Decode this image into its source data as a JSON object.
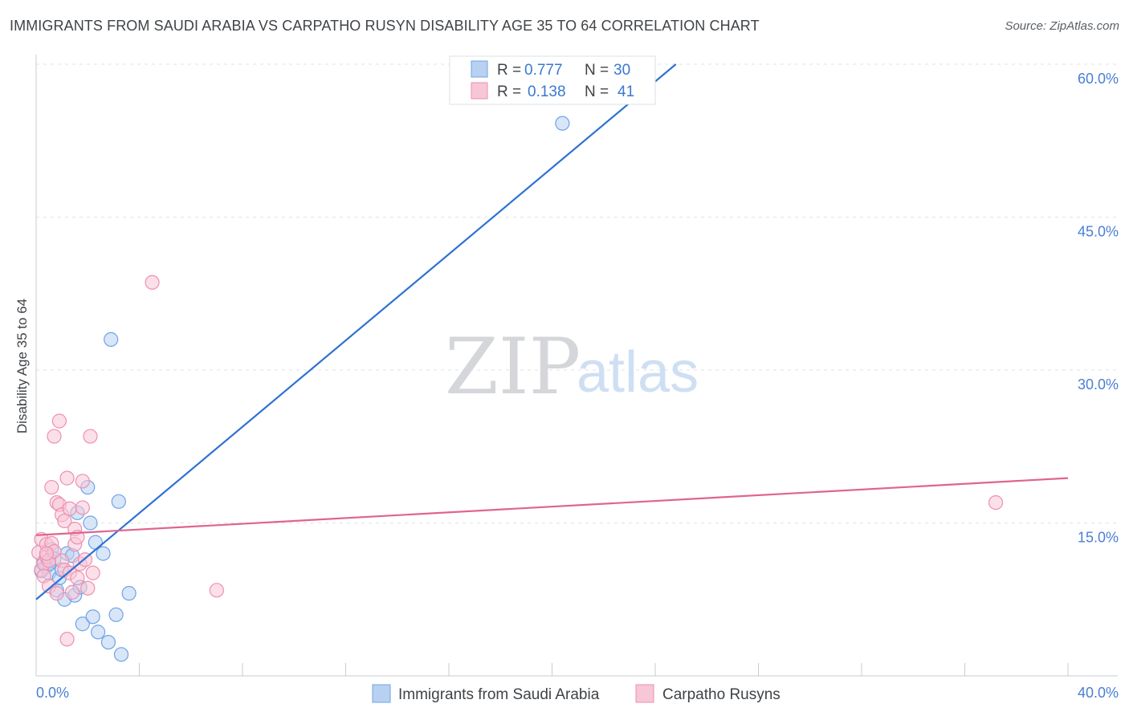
{
  "chart_data": {
    "type": "scatter",
    "title": "IMMIGRANTS FROM SAUDI ARABIA VS CARPATHO RUSYN DISABILITY AGE 35 TO 64 CORRELATION CHART",
    "source": "Source: ZipAtlas.com",
    "ylabel": "Disability Age 35 to 64",
    "xlabel": "",
    "xlim": [
      0,
      40
    ],
    "ylim": [
      0,
      60
    ],
    "x_tick_labels": [
      {
        "value": 0,
        "label": "0.0%"
      },
      {
        "value": 40,
        "label": "40.0%"
      }
    ],
    "y_tick_labels": [
      {
        "value": 15,
        "label": "15.0%"
      },
      {
        "value": 30,
        "label": "30.0%"
      },
      {
        "value": 45,
        "label": "45.0%"
      },
      {
        "value": 60,
        "label": "60.0%"
      }
    ],
    "watermark": {
      "zip": "ZIP",
      "atlas": "atlas"
    },
    "legend_stats": [
      {
        "r_label": "R = ",
        "r": "0.777",
        "n_label": "N = ",
        "n": "30"
      },
      {
        "r_label": "R = ",
        "r": "0.138",
        "n_label": "N = ",
        "n": "41"
      }
    ],
    "series": [
      {
        "name": "Immigrants from Saudi Arabia",
        "color": "#6fa3e6",
        "fill": "#b8d1f2",
        "line_color": "#2e72d2",
        "trend": {
          "x0": 0,
          "y0": 7.5,
          "x1": 24.8,
          "y1": 60.0
        },
        "points": [
          [
            0.2,
            10.3
          ],
          [
            0.3,
            11.2
          ],
          [
            0.4,
            10.7
          ],
          [
            0.5,
            10.1
          ],
          [
            0.6,
            12.4
          ],
          [
            0.7,
            11.5
          ],
          [
            0.8,
            8.4
          ],
          [
            0.9,
            9.6
          ],
          [
            1.0,
            10.4
          ],
          [
            1.1,
            7.5
          ],
          [
            1.2,
            12.0
          ],
          [
            1.4,
            11.8
          ],
          [
            1.5,
            7.9
          ],
          [
            1.6,
            16.0
          ],
          [
            1.7,
            8.7
          ],
          [
            1.8,
            5.1
          ],
          [
            2.0,
            18.5
          ],
          [
            2.1,
            15.0
          ],
          [
            2.2,
            5.8
          ],
          [
            2.3,
            13.1
          ],
          [
            2.4,
            4.3
          ],
          [
            2.6,
            12.0
          ],
          [
            2.8,
            3.3
          ],
          [
            2.9,
            33.0
          ],
          [
            3.1,
            6.0
          ],
          [
            3.2,
            17.1
          ],
          [
            3.3,
            2.1
          ],
          [
            3.6,
            8.1
          ],
          [
            20.4,
            54.2
          ],
          [
            0.5,
            11.0
          ]
        ]
      },
      {
        "name": "Carpatho Rusyns",
        "color": "#ee8fb0",
        "fill": "#f7c6d7",
        "line_color": "#e0648e",
        "trend": {
          "x0": 0,
          "y0": 13.8,
          "x1": 40,
          "y1": 19.4
        },
        "points": [
          [
            0.1,
            12.1
          ],
          [
            0.2,
            13.4
          ],
          [
            0.2,
            10.4
          ],
          [
            0.3,
            11.0
          ],
          [
            0.3,
            9.8
          ],
          [
            0.4,
            11.7
          ],
          [
            0.4,
            12.9
          ],
          [
            0.5,
            8.8
          ],
          [
            0.5,
            11.3
          ],
          [
            0.6,
            13.0
          ],
          [
            0.6,
            18.5
          ],
          [
            0.7,
            12.2
          ],
          [
            0.7,
            23.5
          ],
          [
            0.8,
            17.0
          ],
          [
            0.8,
            8.1
          ],
          [
            0.9,
            25.0
          ],
          [
            0.9,
            16.8
          ],
          [
            1.0,
            15.8
          ],
          [
            1.0,
            11.3
          ],
          [
            1.1,
            15.2
          ],
          [
            1.1,
            10.4
          ],
          [
            1.2,
            19.4
          ],
          [
            1.2,
            3.6
          ],
          [
            1.3,
            16.4
          ],
          [
            1.3,
            10.1
          ],
          [
            1.4,
            8.2
          ],
          [
            1.5,
            12.9
          ],
          [
            1.5,
            14.4
          ],
          [
            1.6,
            9.6
          ],
          [
            1.6,
            13.6
          ],
          [
            1.7,
            11.0
          ],
          [
            1.8,
            19.1
          ],
          [
            1.8,
            16.5
          ],
          [
            1.9,
            11.4
          ],
          [
            2.0,
            8.6
          ],
          [
            2.1,
            23.5
          ],
          [
            2.2,
            10.1
          ],
          [
            4.5,
            38.6
          ],
          [
            7.0,
            8.4
          ],
          [
            37.2,
            17.0
          ],
          [
            0.4,
            12.0
          ]
        ]
      }
    ]
  }
}
